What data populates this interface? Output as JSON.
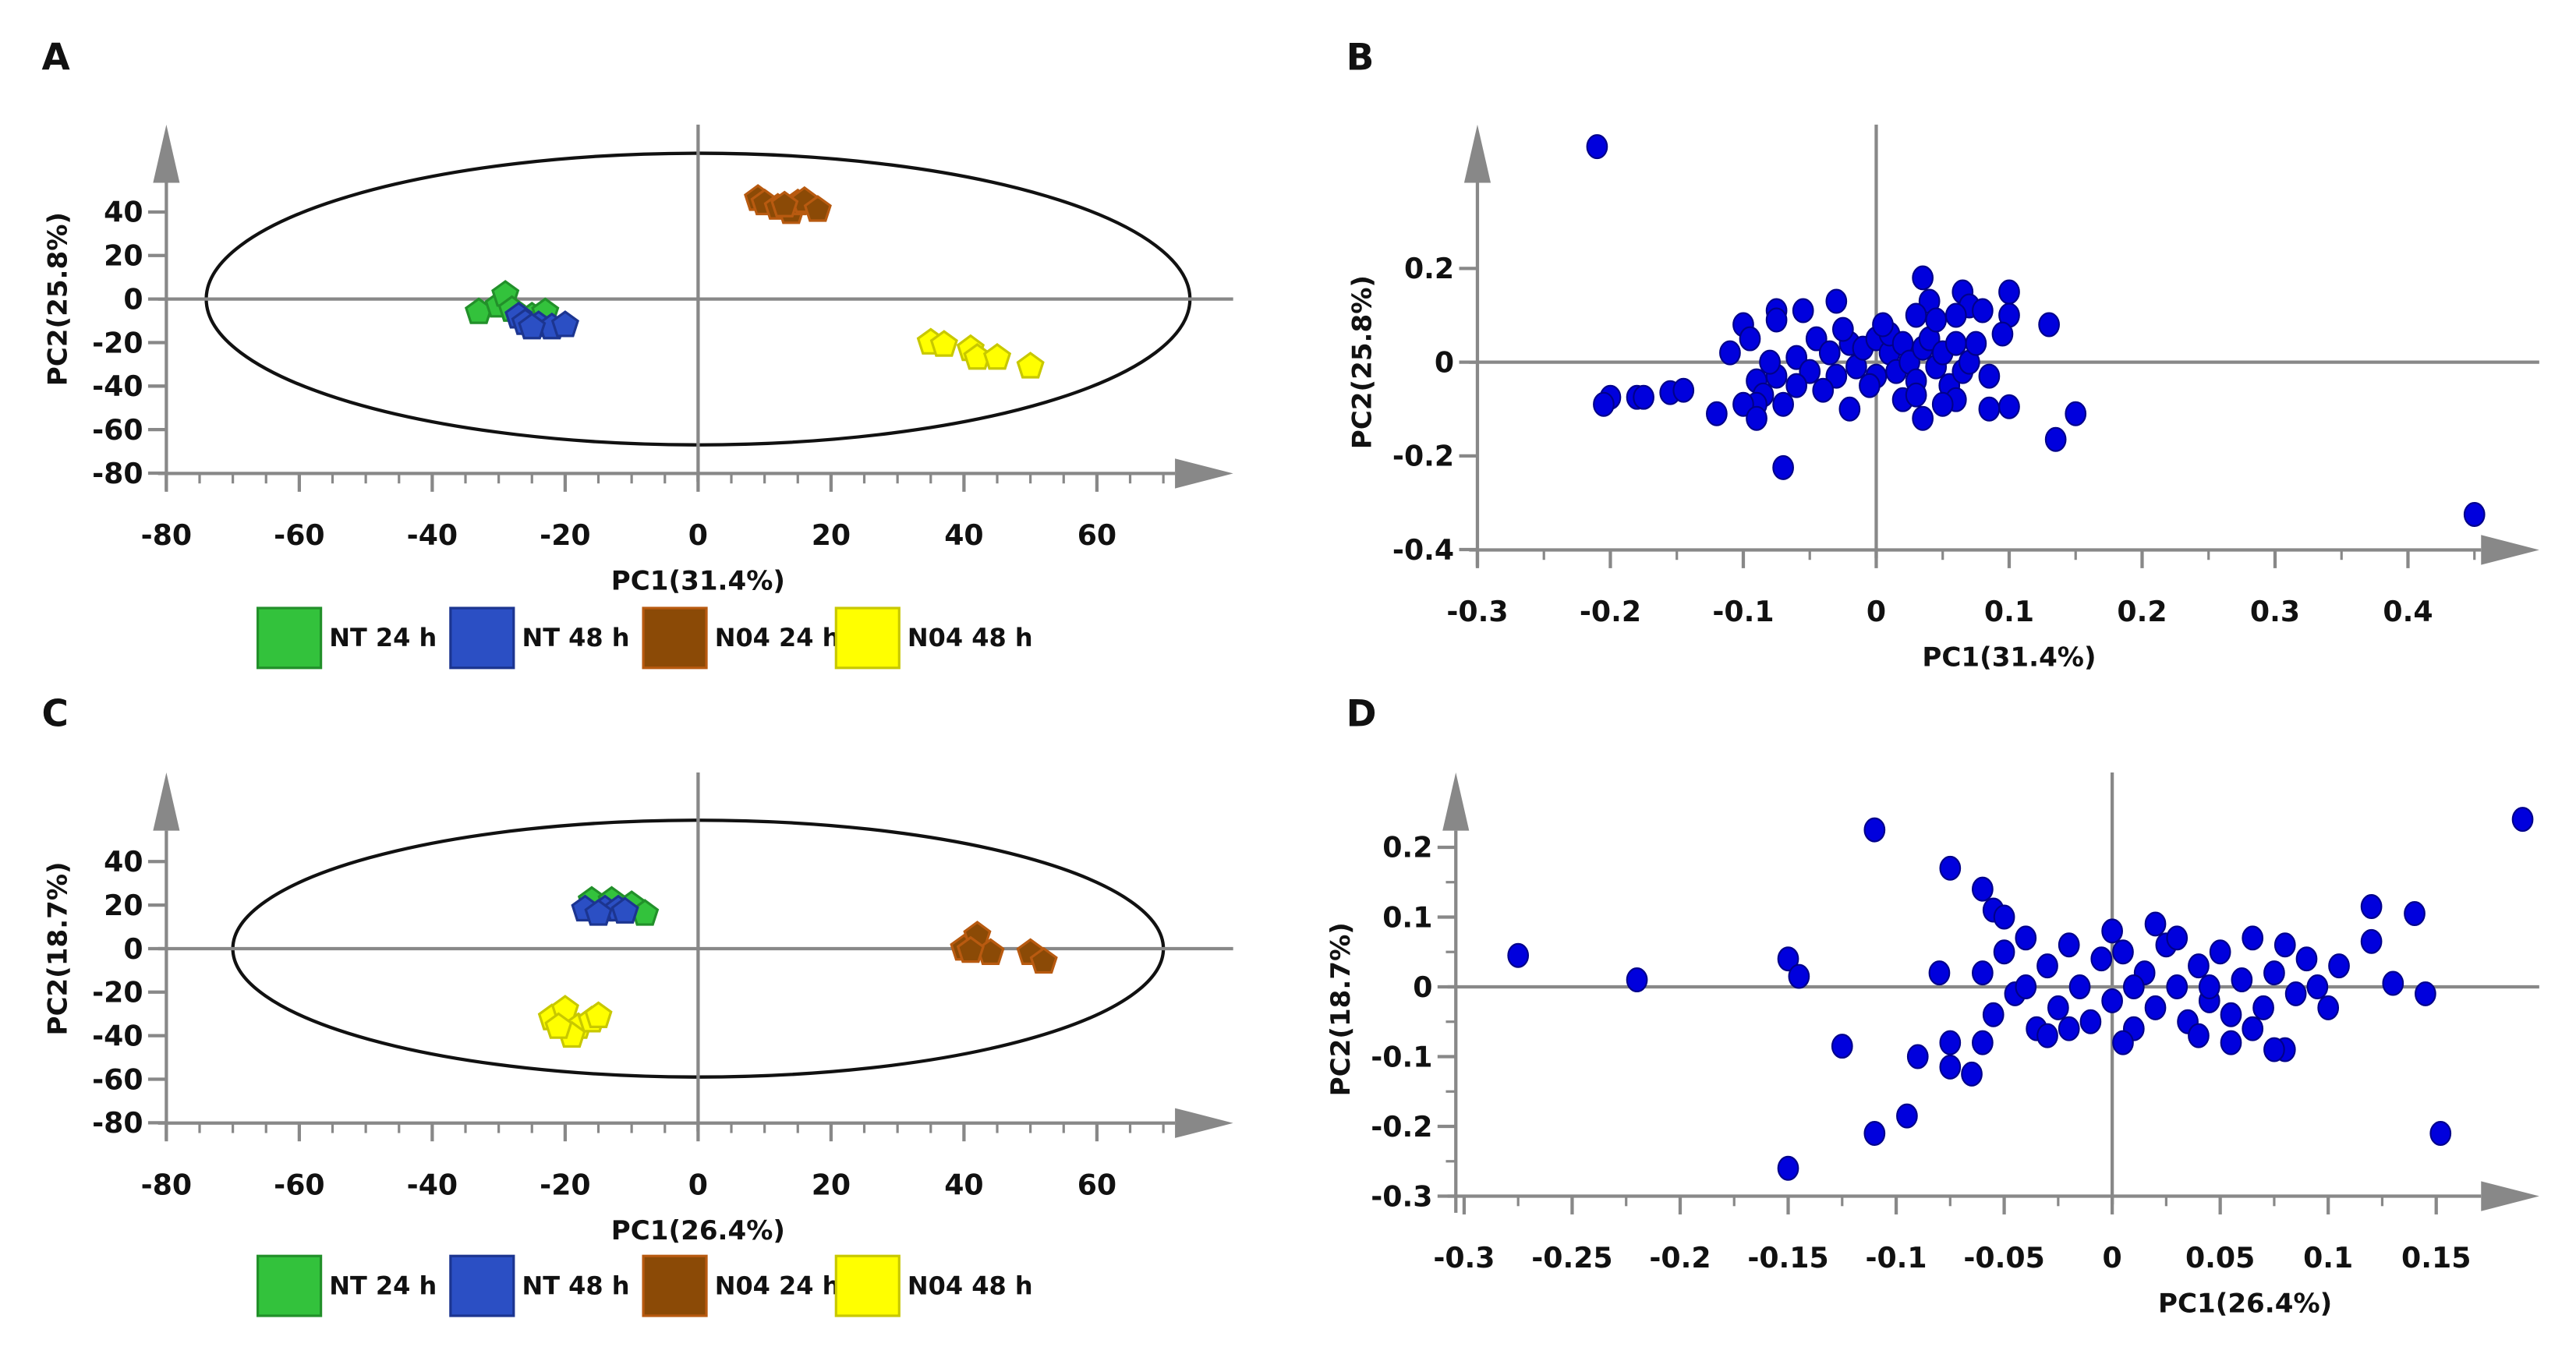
{
  "chart_data": [
    {
      "panel": "A",
      "type": "scatter",
      "xlabel": "PC1(31.4%)",
      "ylabel": "PC2(25.8%)",
      "xlim": [
        -80,
        75
      ],
      "ylim": [
        -80,
        50
      ],
      "xticks": [
        -80,
        -60,
        -40,
        -20,
        0,
        20,
        40,
        60
      ],
      "yticks": [
        40,
        20,
        0,
        -20,
        -40,
        -60,
        -80
      ],
      "ellipse": {
        "rx": 74,
        "ry": 67
      },
      "legend_position": "bottom",
      "series": [
        {
          "name": "NT 24 h",
          "color": "#33c23c",
          "stroke": "#22902a",
          "points": [
            [
              -33,
              -6
            ],
            [
              -30,
              -3
            ],
            [
              -29,
              2
            ],
            [
              -28,
              -5
            ],
            [
              -25,
              -8
            ],
            [
              -23,
              -6
            ]
          ]
        },
        {
          "name": "NT 48 h",
          "color": "#2b4fc4",
          "stroke": "#1c3590",
          "points": [
            [
              -27,
              -8
            ],
            [
              -26,
              -11
            ],
            [
              -24,
              -12
            ],
            [
              -22,
              -13
            ],
            [
              -20,
              -12
            ],
            [
              -25,
              -13
            ]
          ]
        },
        {
          "name": "N04 24 h",
          "color": "#8b4a06",
          "stroke": "#b85a10",
          "points": [
            [
              9,
              46
            ],
            [
              10,
              44
            ],
            [
              12,
              42
            ],
            [
              14,
              40
            ],
            [
              15,
              44
            ],
            [
              16,
              45
            ],
            [
              18,
              41
            ],
            [
              13,
              43
            ]
          ]
        },
        {
          "name": "N04 48 h",
          "color": "#ffff00",
          "stroke": "#c8c800",
          "points": [
            [
              35,
              -20
            ],
            [
              37,
              -21
            ],
            [
              41,
              -23
            ],
            [
              42,
              -27
            ],
            [
              45,
              -27
            ],
            [
              50,
              -31
            ]
          ]
        }
      ]
    },
    {
      "panel": "B",
      "type": "scatter",
      "xlabel": "PC1(31.4%)",
      "ylabel": "PC2(25.8%)",
      "xlim": [
        -0.3,
        0.5
      ],
      "ylim": [
        -0.4,
        0.5
      ],
      "xticks": [
        "-0.3",
        "-0.2",
        "-0.1",
        "0",
        "0.1",
        "0.2",
        "0.3",
        "0.4"
      ],
      "yticks": [
        "0.2",
        "0",
        "-0.2",
        "-0.4"
      ],
      "color": "#0000dd",
      "points": [
        [
          -0.21,
          0.46
        ],
        [
          0.45,
          -0.325
        ],
        [
          -0.07,
          -0.225
        ],
        [
          0.135,
          -0.165
        ],
        [
          0.15,
          -0.11
        ],
        [
          0.1,
          -0.095
        ],
        [
          0.085,
          -0.1
        ],
        [
          -0.12,
          -0.11
        ],
        [
          -0.2,
          -0.075
        ],
        [
          -0.205,
          -0.09
        ],
        [
          -0.18,
          -0.075
        ],
        [
          -0.175,
          -0.075
        ],
        [
          -0.155,
          -0.065
        ],
        [
          -0.145,
          -0.06
        ],
        [
          0.13,
          0.08
        ],
        [
          0.1,
          0.15
        ],
        [
          0.1,
          0.1
        ],
        [
          0.035,
          0.18
        ],
        [
          -0.03,
          0.13
        ],
        [
          -0.055,
          0.11
        ],
        [
          -0.075,
          0.11
        ],
        [
          -0.075,
          0.09
        ],
        [
          -0.1,
          0.08
        ],
        [
          -0.095,
          0.05
        ],
        [
          -0.11,
          0.02
        ],
        [
          0.085,
          -0.03
        ],
        [
          0.065,
          0.15
        ],
        [
          0.07,
          0.12
        ],
        [
          0.08,
          0.11
        ],
        [
          0.095,
          0.06
        ],
        [
          0.04,
          0.13
        ],
        [
          0.03,
          0.1
        ],
        [
          0.06,
          0.1
        ],
        [
          -0.06,
          0.01
        ],
        [
          -0.05,
          -0.02
        ],
        [
          -0.045,
          0.05
        ],
        [
          -0.035,
          0.02
        ],
        [
          -0.03,
          -0.03
        ],
        [
          -0.02,
          0.04
        ],
        [
          -0.015,
          -0.01
        ],
        [
          -0.01,
          0.03
        ],
        [
          0,
          0.05
        ],
        [
          0,
          -0.03
        ],
        [
          0.01,
          0.02
        ],
        [
          0.01,
          0.06
        ],
        [
          0.015,
          -0.02
        ],
        [
          0.02,
          0.04
        ],
        [
          0.025,
          0.0
        ],
        [
          0.03,
          -0.04
        ],
        [
          0.035,
          0.03
        ],
        [
          0.04,
          0.05
        ],
        [
          0.045,
          -0.01
        ],
        [
          0.05,
          0.02
        ],
        [
          0.055,
          -0.05
        ],
        [
          0.06,
          0.04
        ],
        [
          0.065,
          -0.02
        ],
        [
          0.07,
          0.0
        ],
        [
          0.06,
          -0.08
        ],
        [
          0.035,
          -0.12
        ],
        [
          0.02,
          -0.08
        ],
        [
          -0.02,
          -0.1
        ],
        [
          -0.005,
          -0.05
        ],
        [
          -0.09,
          -0.04
        ],
        [
          -0.085,
          -0.07
        ],
        [
          -0.09,
          -0.09
        ],
        [
          -0.1,
          -0.09
        ],
        [
          -0.075,
          -0.03
        ],
        [
          -0.07,
          -0.09
        ],
        [
          -0.09,
          -0.12
        ],
        [
          -0.04,
          -0.06
        ],
        [
          -0.025,
          0.07
        ],
        [
          0.005,
          0.08
        ],
        [
          0.045,
          0.09
        ],
        [
          -0.08,
          0.0
        ],
        [
          0.075,
          0.04
        ],
        [
          -0.06,
          -0.05
        ],
        [
          0.03,
          -0.07
        ],
        [
          0.05,
          -0.09
        ]
      ]
    },
    {
      "panel": "C",
      "type": "scatter",
      "xlabel": "PC1(26.4%)",
      "ylabel": "PC2(18.7%)",
      "xlim": [
        -80,
        75
      ],
      "ylim": [
        -80,
        50
      ],
      "xticks": [
        -80,
        -60,
        -40,
        -20,
        0,
        20,
        40,
        60
      ],
      "yticks": [
        40,
        20,
        0,
        -20,
        -40,
        -60,
        -80
      ],
      "ellipse": {
        "rx": 70,
        "ry": 59
      },
      "legend_position": "bottom",
      "series": [
        {
          "name": "NT 24 h",
          "color": "#33c23c",
          "stroke": "#22902a",
          "points": [
            [
              -16,
              22
            ],
            [
              -13,
              22
            ],
            [
              -10,
              20
            ],
            [
              -8,
              16
            ]
          ]
        },
        {
          "name": "NT 48 h",
          "color": "#2b4fc4",
          "stroke": "#1c3590",
          "points": [
            [
              -17,
              18
            ],
            [
              -14,
              18
            ],
            [
              -12,
              18
            ],
            [
              -15,
              16
            ],
            [
              -11,
              17
            ]
          ]
        },
        {
          "name": "N04 24 h",
          "color": "#8b4a06",
          "stroke": "#b85a10",
          "points": [
            [
              40,
              0
            ],
            [
              42,
              6
            ],
            [
              44,
              -2
            ],
            [
              41,
              -1
            ],
            [
              50,
              -2
            ],
            [
              52,
              -6
            ]
          ]
        },
        {
          "name": "N04 48 h",
          "color": "#ffff00",
          "stroke": "#c8c800",
          "points": [
            [
              -22,
              -32
            ],
            [
              -20,
              -28
            ],
            [
              -18,
              -36
            ],
            [
              -16,
              -33
            ],
            [
              -19,
              -40
            ],
            [
              -15,
              -31
            ],
            [
              -21,
              -36
            ]
          ]
        }
      ]
    },
    {
      "panel": "D",
      "type": "scatter",
      "xlabel": "PC1(26.4%)",
      "ylabel": "PC2(18.7%)",
      "xlim": [
        -0.3,
        0.2
      ],
      "ylim": [
        -0.3,
        0.25
      ],
      "xticks": [
        "-0.3",
        "-0.25",
        "-0.2",
        "-0.15",
        "-0.1",
        "-0.05",
        "0",
        "0.05",
        "0.1",
        "0.15"
      ],
      "yticks": [
        "0.2",
        "0.1",
        "0",
        "-0.1",
        "-0.2",
        "-0.3"
      ],
      "color": "#0000dd",
      "points": [
        [
          -0.275,
          0.045
        ],
        [
          -0.22,
          0.01
        ],
        [
          -0.15,
          0.04
        ],
        [
          -0.145,
          0.015
        ],
        [
          -0.11,
          0.225
        ],
        [
          -0.125,
          -0.085
        ],
        [
          -0.15,
          -0.26
        ],
        [
          -0.11,
          -0.21
        ],
        [
          -0.095,
          -0.185
        ],
        [
          -0.09,
          -0.1
        ],
        [
          -0.075,
          0.17
        ],
        [
          -0.075,
          -0.08
        ],
        [
          -0.075,
          -0.115
        ],
        [
          -0.065,
          -0.125
        ],
        [
          0.19,
          0.24
        ],
        [
          0.152,
          -0.21
        ],
        [
          0.14,
          0.105
        ],
        [
          0.12,
          0.115
        ],
        [
          0.145,
          -0.01
        ],
        [
          0.13,
          0.005
        ],
        [
          0.105,
          0.03
        ],
        [
          0.08,
          -0.09
        ],
        [
          0.075,
          -0.09
        ],
        [
          -0.08,
          0.02
        ],
        [
          -0.06,
          0.14
        ],
        [
          -0.055,
          0.11
        ],
        [
          -0.05,
          0.1
        ],
        [
          0.12,
          0.065
        ],
        [
          0.1,
          -0.03
        ],
        [
          0.095,
          0.0
        ],
        [
          -0.06,
          0.02
        ],
        [
          -0.055,
          -0.04
        ],
        [
          -0.05,
          0.05
        ],
        [
          -0.045,
          -0.01
        ],
        [
          -0.04,
          0.07
        ],
        [
          -0.035,
          -0.06
        ],
        [
          -0.03,
          0.03
        ],
        [
          -0.025,
          -0.03
        ],
        [
          -0.02,
          0.06
        ],
        [
          -0.015,
          0.0
        ],
        [
          -0.01,
          -0.05
        ],
        [
          -0.005,
          0.04
        ],
        [
          0.0,
          -0.02
        ],
        [
          0.005,
          0.05
        ],
        [
          0.01,
          -0.06
        ],
        [
          0.015,
          0.02
        ],
        [
          0.02,
          -0.03
        ],
        [
          0.025,
          0.06
        ],
        [
          0.03,
          0.0
        ],
        [
          0.035,
          -0.05
        ],
        [
          0.04,
          0.03
        ],
        [
          0.045,
          -0.02
        ],
        [
          0.05,
          0.05
        ],
        [
          0.055,
          -0.04
        ],
        [
          0.06,
          0.01
        ],
        [
          0.065,
          0.07
        ],
        [
          0.07,
          -0.03
        ],
        [
          0.075,
          0.02
        ],
        [
          0.08,
          0.06
        ],
        [
          0.085,
          -0.01
        ],
        [
          0.09,
          0.04
        ],
        [
          -0.03,
          -0.07
        ],
        [
          0.005,
          -0.08
        ],
        [
          0.04,
          -0.07
        ],
        [
          0.0,
          0.08
        ],
        [
          -0.06,
          -0.08
        ],
        [
          0.055,
          -0.08
        ],
        [
          0.02,
          0.09
        ],
        [
          -0.04,
          0.0
        ],
        [
          0.01,
          0.0
        ],
        [
          0.045,
          0.0
        ],
        [
          0.065,
          -0.06
        ],
        [
          -0.02,
          -0.06
        ],
        [
          0.03,
          0.07
        ]
      ]
    }
  ],
  "panel_labels": [
    "A",
    "B",
    "C",
    "D"
  ]
}
